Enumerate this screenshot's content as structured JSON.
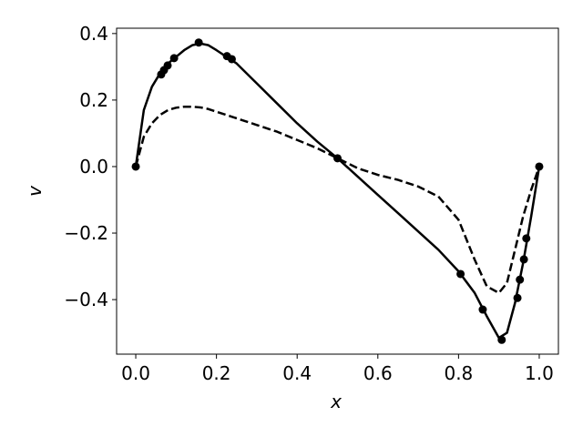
{
  "chart_data": {
    "type": "line",
    "xlabel": "x",
    "ylabel": "v",
    "xlim": [
      -0.0475,
      1.0475
    ],
    "ylim": [
      -0.564,
      0.416
    ],
    "xticks": [
      {
        "value": 0,
        "label": "0.0"
      },
      {
        "value": 0.2,
        "label": "0.2"
      },
      {
        "value": 0.4,
        "label": "0.4"
      },
      {
        "value": 0.6,
        "label": "0.6"
      },
      {
        "value": 0.8,
        "label": "0.8"
      },
      {
        "value": 1,
        "label": "1.0"
      }
    ],
    "yticks": [
      {
        "value": -0.4,
        "label": "−0.4"
      },
      {
        "value": -0.2,
        "label": "−0.2"
      },
      {
        "value": 0,
        "label": "0.0"
      },
      {
        "value": 0.2,
        "label": "0.2"
      },
      {
        "value": 0.4,
        "label": "0.4"
      }
    ],
    "x": [
      0,
      0.02,
      0.04,
      0.06,
      0.08,
      0.1,
      0.12,
      0.14,
      0.16,
      0.18,
      0.2,
      0.25,
      0.3,
      0.35,
      0.4,
      0.45,
      0.5,
      0.55,
      0.6,
      0.65,
      0.7,
      0.75,
      0.8,
      0.84,
      0.87,
      0.9,
      0.92,
      0.94,
      0.96,
      0.98,
      1.0
    ],
    "series": [
      {
        "color": "#000000",
        "style": "solid",
        "values": [
          0,
          0.17,
          0.24,
          0.28,
          0.31,
          0.33,
          0.35,
          0.365,
          0.37,
          0.365,
          0.35,
          0.31,
          0.25,
          0.19,
          0.13,
          0.075,
          0.025,
          -0.03,
          -0.085,
          -0.14,
          -0.195,
          -0.25,
          -0.315,
          -0.38,
          -0.45,
          -0.515,
          -0.5,
          -0.41,
          -0.29,
          -0.15,
          0
        ]
      },
      {
        "color": "#000000",
        "style": "dashed",
        "values": [
          0,
          0.09,
          0.13,
          0.155,
          0.17,
          0.177,
          0.18,
          0.18,
          0.178,
          0.173,
          0.165,
          0.145,
          0.125,
          0.105,
          0.08,
          0.055,
          0.025,
          -0.005,
          -0.025,
          -0.04,
          -0.06,
          -0.09,
          -0.16,
          -0.28,
          -0.36,
          -0.38,
          -0.35,
          -0.25,
          -0.15,
          -0.07,
          0
        ]
      }
    ],
    "markers": {
      "color": "#000000",
      "x": [
        0,
        0.063,
        0.07,
        0.079,
        0.095,
        0.156,
        0.226,
        0.238,
        0.5,
        0.805,
        0.86,
        0.907,
        0.946,
        0.952,
        0.962,
        0.968,
        1.0
      ],
      "values": [
        0,
        0.277,
        0.29,
        0.304,
        0.326,
        0.373,
        0.332,
        0.323,
        0.025,
        -0.323,
        -0.43,
        -0.521,
        -0.395,
        -0.34,
        -0.279,
        -0.216,
        0
      ]
    }
  }
}
